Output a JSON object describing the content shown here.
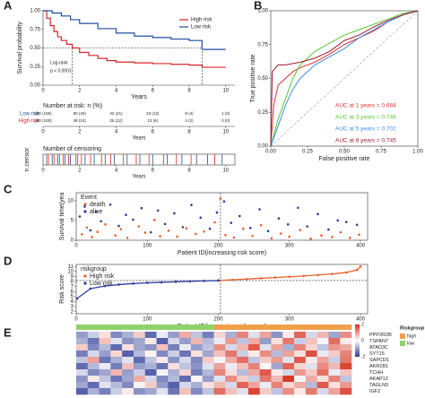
{
  "chart_data": [
    {
      "type": "survival",
      "panel": "A",
      "y_label": "Survival probability",
      "x_label": "Years",
      "xlim": [
        0,
        10.5
      ],
      "ylim": [
        0,
        1
      ],
      "xticks": [
        0,
        2,
        4,
        6,
        8,
        10
      ],
      "yticks": [
        {
          "value": 0,
          "label": "0.00"
        },
        {
          "value": 0.25,
          "label": "0.25"
        },
        {
          "value": 0.5,
          "label": "0.50"
        },
        {
          "value": 0.75,
          "label": "0.75"
        },
        {
          "value": 1,
          "label": "1.00"
        }
      ],
      "series": [
        {
          "name": "High risk",
          "color": "#d62728",
          "x": [
            0,
            0.2,
            0.4,
            0.6,
            0.8,
            1,
            1.3,
            1.6,
            2,
            2.5,
            3,
            3.5,
            4,
            5,
            6,
            7,
            8,
            8.7,
            10
          ],
          "values": [
            1,
            0.9,
            0.8,
            0.72,
            0.65,
            0.6,
            0.55,
            0.5,
            0.44,
            0.4,
            0.36,
            0.33,
            0.31,
            0.3,
            0.29,
            0.28,
            0.27,
            0.24,
            0.24
          ]
        },
        {
          "name": "Low risk",
          "color": "#1f4e9e",
          "x": [
            0,
            0.5,
            1,
            1.5,
            2,
            3,
            4,
            5,
            6,
            7,
            8,
            8.7,
            10
          ],
          "values": [
            1,
            0.97,
            0.93,
            0.88,
            0.83,
            0.76,
            0.7,
            0.66,
            0.64,
            0.62,
            0.6,
            0.48,
            0.48
          ]
        }
      ],
      "median_level": 0.5,
      "medians": [
        1.6,
        8.7
      ],
      "annotations": [
        "Log-rank",
        "p < 0.0001"
      ],
      "risk_table": {
        "title": "Number at risk: n (%)",
        "rows": [
          {
            "name": "Low risk",
            "color": "#1f4e9e",
            "values": [
              "200 (100)",
              "80 (40)",
              "42 (21)",
              "23 (12)",
              "8 (4)",
              "1 (0)"
            ]
          },
          {
            "name": "High risk",
            "color": "#d62728",
            "values": [
              "200 (100)",
              "48 (24)",
              "25 (12)",
              "13 (6)",
              "4 (2)",
              "0 (0)"
            ]
          }
        ]
      }
    },
    {
      "type": "censor_strip",
      "title": "Number of censoring",
      "y_label": "n.censor",
      "x_label": "Years",
      "xlim": [
        0,
        10.5
      ],
      "xticks": [
        0,
        2,
        4,
        6,
        8,
        10
      ],
      "series": [
        {
          "color": "#d62728",
          "x": [
            0.3,
            0.6,
            0.9,
            1.1,
            1.4,
            1.8,
            2.1,
            2.6,
            3.2,
            3.7,
            4.4,
            5.1,
            5.8,
            6.6,
            7.3,
            8.1,
            9.4
          ]
        },
        {
          "color": "#1f4e9e",
          "x": [
            0.2,
            0.5,
            0.8,
            1.2,
            1.5,
            1.9,
            2.3,
            2.8,
            3.4,
            3.9,
            4.6,
            5.3,
            6.0,
            6.8,
            7.6,
            8.4,
            9.0,
            9.8
          ]
        }
      ]
    },
    {
      "type": "roc",
      "panel": "B",
      "x_label": "False positive rate",
      "y_label": "True positive rate",
      "xlim": [
        0,
        1
      ],
      "ylim": [
        0,
        1
      ],
      "xticks": [
        {
          "value": 0,
          "label": "0.00"
        },
        {
          "value": 0.25,
          "label": "0.25"
        },
        {
          "value": 0.5,
          "label": "0.50"
        },
        {
          "value": 0.75,
          "label": "0.75"
        },
        {
          "value": 1,
          "label": "1.00"
        }
      ],
      "yticks": [
        {
          "value": 0,
          "label": "0.00"
        },
        {
          "value": 0.25,
          "label": "0.25"
        },
        {
          "value": 0.5,
          "label": "0.50"
        },
        {
          "value": 0.75,
          "label": "0.75"
        },
        {
          "value": 1,
          "label": "1.00"
        }
      ],
      "series": [
        {
          "name": "AUC at 1 years = 0.684",
          "color": "#e0312d",
          "x": [
            0,
            0.02,
            0.05,
            0.1,
            0.15,
            0.2,
            0.3,
            0.4,
            0.5,
            0.6,
            0.7,
            0.8,
            0.9,
            1
          ],
          "values": [
            0,
            0.3,
            0.45,
            0.5,
            0.55,
            0.58,
            0.62,
            0.68,
            0.75,
            0.8,
            0.85,
            0.92,
            0.97,
            1
          ]
        },
        {
          "name": "AUC at 3 years = 0.748",
          "color": "#5cc534",
          "x": [
            0,
            0.05,
            0.1,
            0.15,
            0.2,
            0.3,
            0.4,
            0.5,
            0.6,
            0.7,
            0.8,
            0.9,
            1
          ],
          "values": [
            0,
            0.2,
            0.35,
            0.5,
            0.6,
            0.7,
            0.76,
            0.82,
            0.86,
            0.9,
            0.94,
            0.98,
            1
          ]
        },
        {
          "name": "AUC at 5 years = 0.702",
          "color": "#3a8ee6",
          "x": [
            0,
            0.05,
            0.1,
            0.15,
            0.2,
            0.3,
            0.4,
            0.5,
            0.6,
            0.7,
            0.8,
            0.9,
            1
          ],
          "values": [
            0,
            0.15,
            0.3,
            0.42,
            0.5,
            0.6,
            0.66,
            0.72,
            0.8,
            0.86,
            0.92,
            0.97,
            1
          ]
        },
        {
          "name": "AUC at 8 years = 0.745",
          "color": "#9b1b30",
          "x": [
            0,
            0.01,
            0.05,
            0.1,
            0.2,
            0.3,
            0.4,
            0.5,
            0.6,
            0.7,
            0.8,
            0.9,
            1
          ],
          "values": [
            0,
            0.55,
            0.6,
            0.6,
            0.62,
            0.65,
            0.7,
            0.78,
            0.82,
            0.88,
            0.93,
            0.97,
            1
          ]
        }
      ]
    },
    {
      "type": "scatter",
      "panel": "C",
      "y_label": "Survival time(yea",
      "x_label": "Patient ID(increasing risk score)",
      "legend_title": "Event",
      "xlim": [
        0,
        410
      ],
      "ylim": [
        0,
        12
      ],
      "xticks": [
        0,
        100,
        200,
        300,
        400
      ],
      "yticks": [
        0,
        5,
        10
      ],
      "cutoff_x": 203,
      "series": [
        {
          "name": "death",
          "color": "#e8622c",
          "x": [
            8,
            15,
            22,
            30,
            41,
            55,
            63,
            72,
            88,
            97,
            110,
            118,
            130,
            142,
            155,
            168,
            180,
            195,
            203,
            210,
            222,
            235,
            248,
            260,
            275,
            288,
            300,
            315,
            330,
            345,
            360,
            372,
            385,
            398
          ],
          "values": [
            1.5,
            3.2,
            0.8,
            2.1,
            4.0,
            1.2,
            2.8,
            0.6,
            3.5,
            1.9,
            5.1,
            1.0,
            2.4,
            0.9,
            3.0,
            1.6,
            2.2,
            4.5,
            10.5,
            1.3,
            0.7,
            2.9,
            1.1,
            3.8,
            0.5,
            1.7,
            0.9,
            2.6,
            0.4,
            1.2,
            0.8,
            2.0,
            0.6,
            1.4
          ]
        },
        {
          "name": "alive",
          "color": "#2d3e9c",
          "x": [
            5,
            12,
            20,
            28,
            35,
            48,
            60,
            70,
            80,
            92,
            105,
            115,
            125,
            138,
            150,
            162,
            175,
            188,
            198,
            208,
            218,
            230,
            245,
            258,
            270,
            285,
            298,
            312,
            325,
            340,
            355,
            368,
            380,
            395
          ],
          "values": [
            6.0,
            8.5,
            2.5,
            7.2,
            4.8,
            9.0,
            3.6,
            6.4,
            5.2,
            8.1,
            2.0,
            7.5,
            4.1,
            6.8,
            3.3,
            8.9,
            5.7,
            2.9,
            7.0,
            9.8,
            4.4,
            6.1,
            3.1,
            7.8,
            2.3,
            5.5,
            4.0,
            8.2,
            3.5,
            6.6,
            2.7,
            5.0,
            4.6,
            3.9
          ]
        }
      ]
    },
    {
      "type": "scatter",
      "panel": "D",
      "y_label": "Risk score",
      "x_label": "Patient ID(increasing risk score)",
      "legend_title": "riskgroup",
      "mode": "lines+markers",
      "xlim": [
        0,
        410
      ],
      "ylim": [
        1.6,
        11.4
      ],
      "xticks": [
        0,
        100,
        200,
        300,
        400
      ],
      "yticks": [
        2,
        3,
        4,
        5,
        6,
        7,
        8,
        9,
        10,
        11
      ],
      "cutoff_x": 203,
      "cutoff_y": 8.2,
      "series": [
        {
          "name": "High risk",
          "color": "#e8622c",
          "x": [
            201,
            220,
            240,
            260,
            280,
            300,
            320,
            340,
            360,
            380,
            395,
            400
          ],
          "values": [
            8.22,
            8.35,
            8.5,
            8.65,
            8.8,
            8.95,
            9.1,
            9.3,
            9.5,
            9.8,
            10.3,
            11.0
          ]
        },
        {
          "name": "Low risk",
          "color": "#2d3e9c",
          "x": [
            1,
            20,
            40,
            60,
            80,
            100,
            120,
            140,
            160,
            180,
            200
          ],
          "values": [
            4.6,
            6.6,
            7.1,
            7.4,
            7.6,
            7.75,
            7.85,
            7.95,
            8.05,
            8.12,
            8.2
          ]
        }
      ]
    },
    {
      "type": "heatmap",
      "panel": "E",
      "clim": [
        -2,
        2
      ],
      "colorbar_ticks": [
        2,
        0,
        -2
      ],
      "annotation": {
        "title": "Riskgroup",
        "levels": [
          {
            "name": "high",
            "color": "#f0a04b"
          },
          {
            "name": "low",
            "color": "#8ed36a"
          }
        ],
        "groups": [
          "low",
          "low",
          "low",
          "low",
          "low",
          "low",
          "low",
          "low",
          "low",
          "low",
          "low",
          "low",
          "high",
          "high",
          "high",
          "high",
          "high",
          "high",
          "high",
          "high",
          "high",
          "high",
          "high",
          "high"
        ]
      },
      "genes": [
        "PPP2R2B",
        "TSPAN7",
        "ATAD3C",
        "SYT15",
        "SAPCD1",
        "AKR1B1",
        "TCHH",
        "AKAP12",
        "TAGLN3",
        "IGF2"
      ],
      "values": [
        [
          -1,
          -0.5,
          0.3,
          -1.2,
          -0.8,
          0.5,
          -1.5,
          -0.2,
          -1,
          0.8,
          -0.6,
          -1.3,
          0.4,
          -0.8,
          1.2,
          -0.3,
          0.9,
          -1.1,
          0.2,
          1.5,
          -0.4,
          0.7,
          -0.9,
          1.1
        ],
        [
          -0.8,
          -1.4,
          0.6,
          -0.3,
          -1.1,
          -0.9,
          0.2,
          -1.6,
          -0.4,
          -1,
          0.7,
          -0.7,
          -0.2,
          1,
          -0.6,
          0.8,
          -1,
          0.3,
          1.3,
          -0.5,
          0.6,
          -0.1,
          1.4,
          0.2
        ],
        [
          0.5,
          -1.2,
          -0.7,
          -1.5,
          0.3,
          -0.9,
          -1.1,
          0.6,
          -1.3,
          -0.2,
          -1,
          -0.6,
          1.1,
          -0.4,
          0.7,
          1.6,
          -0.3,
          0.9,
          -0.8,
          1.2,
          0.4,
          -0.6,
          1,
          0.8
        ],
        [
          -1.3,
          -0.4,
          -1,
          0.4,
          -1.6,
          -0.7,
          0.1,
          -1.2,
          -0.5,
          -1.4,
          0.3,
          -0.9,
          0.6,
          1.3,
          -0.5,
          0.2,
          1.1,
          -0.7,
          0.9,
          0.3,
          1.7,
          -0.2,
          0.5,
          1.2
        ],
        [
          -0.6,
          0.9,
          -1.4,
          -0.8,
          -0.3,
          -1.5,
          -0.6,
          0.2,
          -1.1,
          -0.4,
          -1.2,
          0.5,
          -0.1,
          0.8,
          1.4,
          -0.6,
          0.5,
          1,
          -0.3,
          1.6,
          0.2,
          0.9,
          -0.5,
          1.3
        ],
        [
          -1.5,
          -0.7,
          -0.2,
          -1.3,
          0.6,
          -1,
          -0.8,
          -1.4,
          0.3,
          -0.6,
          -1.1,
          -0.3,
          0.9,
          -0.2,
          0.6,
          1.2,
          0.1,
          -0.9,
          1.5,
          0.4,
          -0.3,
          1.1,
          0.7,
          1.8
        ],
        [
          -0.4,
          -1.2,
          -0.9,
          0.7,
          -1,
          -0.5,
          -1.6,
          -0.1,
          -0.8,
          0.4,
          -1.3,
          -0.7,
          1.2,
          0.3,
          -0.7,
          0.8,
          1.6,
          0.2,
          -0.4,
          1,
          0.5,
          1.4,
          -0.2,
          0.6
        ],
        [
          -1.1,
          0.2,
          -0.6,
          -1.4,
          -0.9,
          0.8,
          -0.4,
          -1.2,
          -0.7,
          -1.5,
          0.1,
          -1,
          -0.3,
          1.1,
          0.5,
          -0.5,
          1.3,
          0.7,
          1.9,
          -0.1,
          0.8,
          0.3,
          1.2,
          -0.6
        ],
        [
          -0.9,
          -1.5,
          -0.3,
          -0.7,
          -1.2,
          -0.1,
          0.5,
          -1,
          -1.6,
          -0.4,
          -0.8,
          0.3,
          0.7,
          -0.4,
          1.5,
          0.9,
          -0.2,
          1.2,
          0.4,
          0.8,
          -0.7,
          1.6,
          0.3,
          1
        ],
        [
          -1.6,
          -0.8,
          -1.3,
          -0.5,
          0.2,
          -1.1,
          -0.9,
          -0.3,
          -1.4,
          0.6,
          -1.2,
          -0.6,
          1.4,
          0.6,
          -0.3,
          1.8,
          0.5,
          -0.6,
          1.1,
          0.2,
          1.3,
          -0.4,
          0.9,
          1.7
        ]
      ]
    }
  ]
}
